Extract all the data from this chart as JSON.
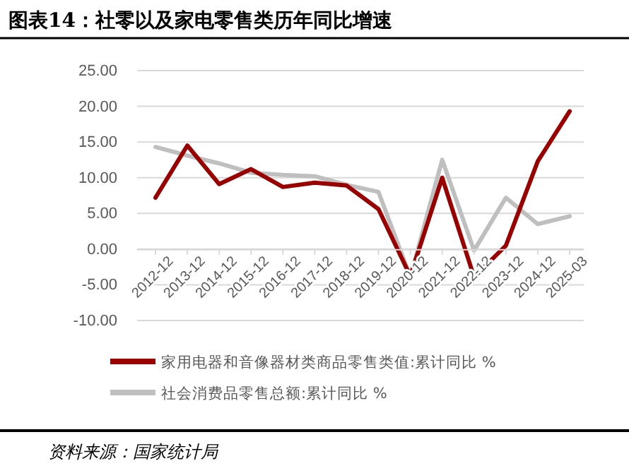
{
  "chart_data": {
    "type": "line",
    "title": "图表14：社零以及家电零售类历年同比增速",
    "categories": [
      "2012-12",
      "2013-12",
      "2014-12",
      "2015-12",
      "2016-12",
      "2017-12",
      "2018-12",
      "2019-12",
      "2020-12",
      "2021-12",
      "2022-12",
      "2023-12",
      "2024-12",
      "2025-03"
    ],
    "series": [
      {
        "name": "家用电器和音像器材类商品零售类值:累计同比 %",
        "color": "#990000",
        "values": [
          7.2,
          14.5,
          9.1,
          11.2,
          8.7,
          9.3,
          8.9,
          5.6,
          -3.8,
          10.0,
          -3.9,
          0.5,
          12.3,
          19.3
        ]
      },
      {
        "name": "社会消费品零售总额:累计同比 %",
        "color": "#bfbfbf",
        "values": [
          14.3,
          13.1,
          12.0,
          10.7,
          10.4,
          10.2,
          9.0,
          8.0,
          -3.9,
          12.5,
          -0.2,
          7.2,
          3.5,
          4.6
        ]
      }
    ],
    "ylim": [
      -10,
      25
    ],
    "yticks": [
      {
        "value": -10,
        "label": "-10.00"
      },
      {
        "value": -5,
        "label": "-5.00"
      },
      {
        "value": 0,
        "label": "0.00"
      },
      {
        "value": 5,
        "label": "5.00"
      },
      {
        "value": 10,
        "label": "10.00"
      },
      {
        "value": 15,
        "label": "15.00"
      },
      {
        "value": 20,
        "label": "20.00"
      },
      {
        "value": 25,
        "label": "25.00"
      }
    ],
    "grid": "y",
    "legend": "bottom",
    "line_style": "solid",
    "annotations": [
      "资料来源：国家统计局"
    ]
  }
}
